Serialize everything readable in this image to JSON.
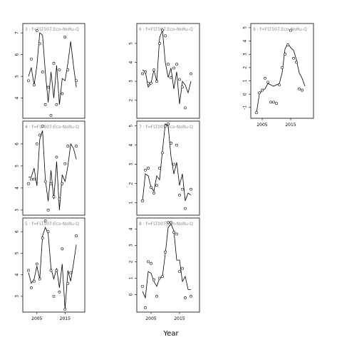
{
  "chart_data": {
    "type": "line",
    "xlabel": "Year",
    "layout": "3x3 small multiples (by column), one panel per series",
    "grid": false,
    "panels": [
      {
        "label": "3 : f=FLT007:Eco-NoRu-Q",
        "xlim": [
          2001,
          2021
        ],
        "ylim": [
          3.2,
          7.3
        ],
        "yticks": [
          4,
          5,
          6,
          7
        ],
        "xticks": [],
        "fit_x": [
          2002,
          2003,
          2004,
          2005,
          2006,
          2007,
          2008,
          2009,
          2010,
          2011,
          2012,
          2013,
          2014,
          2015,
          2016,
          2017,
          2018,
          2019
        ],
        "fit_y": [
          5.0,
          5.4,
          4.6,
          5.5,
          7.0,
          6.9,
          5.2,
          3.8,
          5.2,
          4.0,
          5.5,
          3.7,
          4.9,
          4.8,
          5.6,
          6.6,
          5.5,
          4.5
        ],
        "points": [
          [
            2002,
            4.8
          ],
          [
            2003,
            5.8
          ],
          [
            2004,
            4.6
          ],
          [
            2005,
            7.1
          ],
          [
            2006,
            6.5
          ],
          [
            2007,
            5.2
          ],
          [
            2008,
            3.7
          ],
          [
            2009,
            4.5
          ],
          [
            2010,
            3.2
          ],
          [
            2011,
            5.6
          ],
          [
            2012,
            3.7
          ],
          [
            2013,
            5.3
          ],
          [
            2014,
            4.2
          ],
          [
            2015,
            6.8
          ],
          [
            2016,
            5.3
          ],
          [
            2019,
            4.8
          ]
        ]
      },
      {
        "label": "4 : f=FLT007:Eco-NoRu-Q",
        "xlim": [
          2001,
          2021
        ],
        "ylim": [
          2.9,
          6.9
        ],
        "yticks": [
          3,
          4,
          5,
          6
        ],
        "xticks": [],
        "fit_x": [
          2002,
          2003,
          2004,
          2005,
          2006,
          2007,
          2008,
          2009,
          2010,
          2011,
          2012,
          2013,
          2014,
          2015,
          2016,
          2017,
          2018,
          2019
        ],
        "fit_y": [
          4.5,
          4.5,
          4.9,
          4.1,
          6.2,
          6.6,
          4.4,
          3.4,
          4.8,
          3.5,
          5.2,
          3.0,
          4.6,
          4.3,
          5.0,
          6.0,
          5.8,
          5.3
        ],
        "points": [
          [
            2002,
            4.2
          ],
          [
            2003,
            4.4
          ],
          [
            2004,
            4.4
          ],
          [
            2005,
            6.0
          ],
          [
            2006,
            6.4
          ],
          [
            2007,
            6.8
          ],
          [
            2008,
            4.3
          ],
          [
            2009,
            3.0
          ],
          [
            2010,
            4.2
          ],
          [
            2011,
            3.6
          ],
          [
            2012,
            5.4
          ],
          [
            2013,
            3.5
          ],
          [
            2014,
            4.2
          ],
          [
            2015,
            5.1
          ],
          [
            2016,
            5.9
          ],
          [
            2019,
            5.9
          ]
        ]
      },
      {
        "label": "5 : f=FLT007:Eco-NoRu-Q",
        "xlim": [
          2001,
          2021
        ],
        "ylim": [
          2.4,
          6.5
        ],
        "yticks": [
          3,
          4,
          5,
          6
        ],
        "xticks": [
          2005,
          2015
        ],
        "fit_x": [
          2002,
          2003,
          2004,
          2005,
          2006,
          2007,
          2008,
          2009,
          2010,
          2011,
          2012,
          2013,
          2014,
          2015,
          2016,
          2017,
          2018,
          2019
        ],
        "fit_y": [
          4.1,
          3.6,
          3.8,
          4.4,
          3.8,
          5.8,
          6.2,
          5.9,
          4.3,
          3.8,
          4.3,
          3.4,
          4.5,
          2.4,
          4.2,
          3.7,
          4.5,
          5.4
        ],
        "points": [
          [
            2002,
            4.2
          ],
          [
            2003,
            3.4
          ],
          [
            2004,
            3.7
          ],
          [
            2005,
            4.5
          ],
          [
            2006,
            3.8
          ],
          [
            2007,
            5.7
          ],
          [
            2008,
            6.5
          ],
          [
            2009,
            6.0
          ],
          [
            2010,
            4.2
          ],
          [
            2011,
            3.0
          ],
          [
            2012,
            4.2
          ],
          [
            2013,
            3.2
          ],
          [
            2014,
            5.2
          ],
          [
            2015,
            2.4
          ],
          [
            2016,
            3.6
          ],
          [
            2017,
            4.1
          ],
          [
            2019,
            5.8
          ]
        ]
      },
      {
        "label": "6 : f=FLT007:Eco-NoRu-Q",
        "xlim": [
          2001,
          2021
        ],
        "ylim": [
          1.2,
          5.9
        ],
        "yticks": [
          2,
          3,
          4,
          5
        ],
        "xticks": [],
        "fit_x": [
          2002,
          2003,
          2004,
          2005,
          2006,
          2007,
          2008,
          2009,
          2010,
          2011,
          2012,
          2013,
          2014,
          2015,
          2016,
          2017,
          2018,
          2019
        ],
        "fit_y": [
          3.6,
          3.5,
          2.7,
          2.9,
          3.6,
          3.0,
          5.3,
          5.7,
          4.0,
          3.2,
          3.7,
          2.6,
          3.5,
          1.8,
          3.0,
          2.8,
          2.4,
          3.0
        ],
        "points": [
          [
            2002,
            3.4
          ],
          [
            2003,
            3.5
          ],
          [
            2004,
            2.9
          ],
          [
            2005,
            2.9
          ],
          [
            2006,
            3.6
          ],
          [
            2007,
            3.0
          ],
          [
            2008,
            5.0
          ],
          [
            2009,
            5.7
          ],
          [
            2010,
            5.4
          ],
          [
            2011,
            3.9
          ],
          [
            2012,
            3.2
          ],
          [
            2013,
            3.7
          ],
          [
            2014,
            3.9
          ],
          [
            2015,
            3.1
          ],
          [
            2016,
            2.7
          ],
          [
            2017,
            1.6
          ],
          [
            2019,
            3.4
          ]
        ]
      },
      {
        "label": "7 : f=FLT007:Eco-NoRu-Q",
        "xlim": [
          2001,
          2021
        ],
        "ylim": [
          0.5,
          5.1
        ],
        "yticks": [
          1,
          2,
          3,
          4,
          5
        ],
        "xticks": [],
        "fit_x": [
          2002,
          2003,
          2004,
          2005,
          2006,
          2007,
          2008,
          2009,
          2010,
          2011,
          2012,
          2013,
          2014,
          2015,
          2016,
          2017,
          2018,
          2019
        ],
        "fit_y": [
          1.1,
          2.5,
          2.4,
          1.8,
          1.6,
          2.4,
          2.2,
          3.7,
          5.1,
          5.0,
          3.4,
          2.5,
          3.1,
          1.9,
          2.5,
          1.1,
          1.5,
          1.4
        ],
        "points": [
          [
            2002,
            1.1
          ],
          [
            2003,
            2.7
          ],
          [
            2004,
            2.8
          ],
          [
            2005,
            1.8
          ],
          [
            2006,
            1.5
          ],
          [
            2007,
            1.9
          ],
          [
            2008,
            2.8
          ],
          [
            2009,
            3.6
          ],
          [
            2010,
            5.0
          ],
          [
            2011,
            5.1
          ],
          [
            2012,
            4.1
          ],
          [
            2013,
            3.0
          ],
          [
            2014,
            4.0
          ],
          [
            2015,
            1.4
          ],
          [
            2016,
            1.7
          ],
          [
            2017,
            0.7
          ],
          [
            2019,
            1.7
          ]
        ]
      },
      {
        "label": "8 : f=FLT007:Eco-NoRu-Q",
        "xlim": [
          2001,
          2021
        ],
        "ylim": [
          -0.9,
          4.5
        ],
        "yticks": [
          0,
          1,
          2,
          3,
          4
        ],
        "xticks": [
          2005,
          2015
        ],
        "fit_x": [
          2002,
          2003,
          2004,
          2005,
          2006,
          2007,
          2008,
          2009,
          2010,
          2011,
          2012,
          2013,
          2014,
          2015,
          2016,
          2017,
          2018,
          2019
        ],
        "fit_y": [
          0.2,
          -0.2,
          1.4,
          1.3,
          0.8,
          0.5,
          1.0,
          1.1,
          2.5,
          4.1,
          4.3,
          3.9,
          2.1,
          2.1,
          0.8,
          1.1,
          0.3,
          0.3
        ],
        "points": [
          [
            2002,
            0.5
          ],
          [
            2003,
            -0.8
          ],
          [
            2004,
            2.0
          ],
          [
            2005,
            1.9
          ],
          [
            2006,
            0.9
          ],
          [
            2007,
            -0.1
          ],
          [
            2008,
            1.0
          ],
          [
            2009,
            1.1
          ],
          [
            2010,
            2.6
          ],
          [
            2011,
            4.4
          ],
          [
            2012,
            4.4
          ],
          [
            2013,
            3.8
          ],
          [
            2014,
            3.7
          ],
          [
            2015,
            1.4
          ],
          [
            2016,
            1.6
          ],
          [
            2017,
            -0.2
          ],
          [
            2019,
            -0.1
          ]
        ]
      },
      {
        "label": "9 : f=FLT007:Eco-NoRu-Q",
        "xlim": [
          2002,
          2022
        ],
        "ylim": [
          -1.6,
          5.1
        ],
        "yticks": [
          -1,
          0,
          1,
          2,
          3,
          4,
          5
        ],
        "xticks": [
          2005,
          2015
        ],
        "fit_x": [
          2003,
          2004,
          2005,
          2006,
          2007,
          2008,
          2009,
          2010,
          2011,
          2012,
          2013,
          2014,
          2015,
          2016,
          2017,
          2018,
          2019,
          2020
        ],
        "fit_y": [
          -1.4,
          0.0,
          0.3,
          0.4,
          0.8,
          0.7,
          0.6,
          0.7,
          0.8,
          1.6,
          3.4,
          3.8,
          3.5,
          3.3,
          2.6,
          1.6,
          1.2,
          0.6
        ],
        "points": [
          [
            2003,
            -1.4
          ],
          [
            2004,
            0.1
          ],
          [
            2005,
            0.3
          ],
          [
            2006,
            1.2
          ],
          [
            2007,
            0.9
          ],
          [
            2008,
            -0.6
          ],
          [
            2009,
            -0.6
          ],
          [
            2010,
            -0.7
          ],
          [
            2011,
            0.7
          ],
          [
            2012,
            2.0
          ],
          [
            2013,
            3.0
          ],
          [
            2014,
            3.7
          ],
          [
            2015,
            4.8
          ],
          [
            2016,
            2.7
          ],
          [
            2017,
            2.4
          ],
          [
            2018,
            0.4
          ],
          [
            2019,
            0.3
          ]
        ]
      }
    ]
  }
}
